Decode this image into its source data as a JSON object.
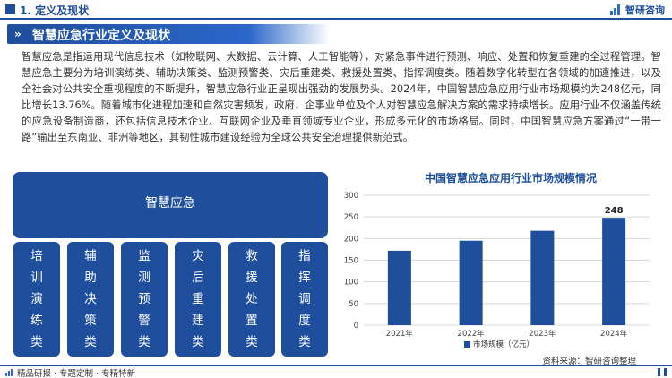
{
  "header": {
    "section_label": "1. 定义及现状",
    "brand": "智研咨询"
  },
  "banner": {
    "chevron": "»",
    "title": "智慧应急行业定义及现状"
  },
  "paragraph": "智慧应急是指运用现代信息技术（如物联网、大数据、云计算、人工智能等），对紧急事件进行预测、响应、处置和恢复重建的全过程管理。智慧应急主要分为培训演练类、辅助决策类、监测预警类、灾后重建类、救援处置类、指挥调度类。随着数字化转型在各领域的加速推进，以及全社会对公共安全重视程度的不断提升，智慧应急行业正呈现出强劲的发展势头。2024年，中国智慧应急应用行业市场规模约为248亿元，同比增长13.76%。随着城市化进程加速和自然灾害频发，政府、企事业单位及个人对智慧应急解决方案的需求持续增长。应用行业不仅涵盖传统的应急设备制造商，还包括信息技术企业、互联网企业及垂直领域专业企业，形成多元化的市场格局。同时，中国智慧应急方案通过“一带一路”输出至东南亚、非洲等地区，其韧性城市建设经验为全球公共安全治理提供新范式。",
  "diagram": {
    "root": "智慧应急",
    "categories": [
      "培训演练类",
      "辅助决策类",
      "监测预警类",
      "灾后重建类",
      "救援处置类",
      "指挥调度类"
    ]
  },
  "chart_data": {
    "type": "bar",
    "title": "中国智慧应急应用行业市场规模情况",
    "categories": [
      "2021年",
      "2022年",
      "2023年",
      "2024年"
    ],
    "series": [
      {
        "name": "市场规模（亿元）",
        "values": [
          172,
          195,
          218,
          248
        ]
      }
    ],
    "data_labels": [
      null,
      null,
      null,
      "248"
    ],
    "ylim": [
      0,
      300
    ],
    "yticks": [
      0,
      50,
      100,
      150,
      200,
      250,
      300
    ],
    "grid": true,
    "legend": "bottom-center",
    "color": "#1f4e9c"
  },
  "source": "资料来源：智研咨询整理",
  "footer": {
    "left": "精品研报 · 专题定制 · 专精特新"
  }
}
